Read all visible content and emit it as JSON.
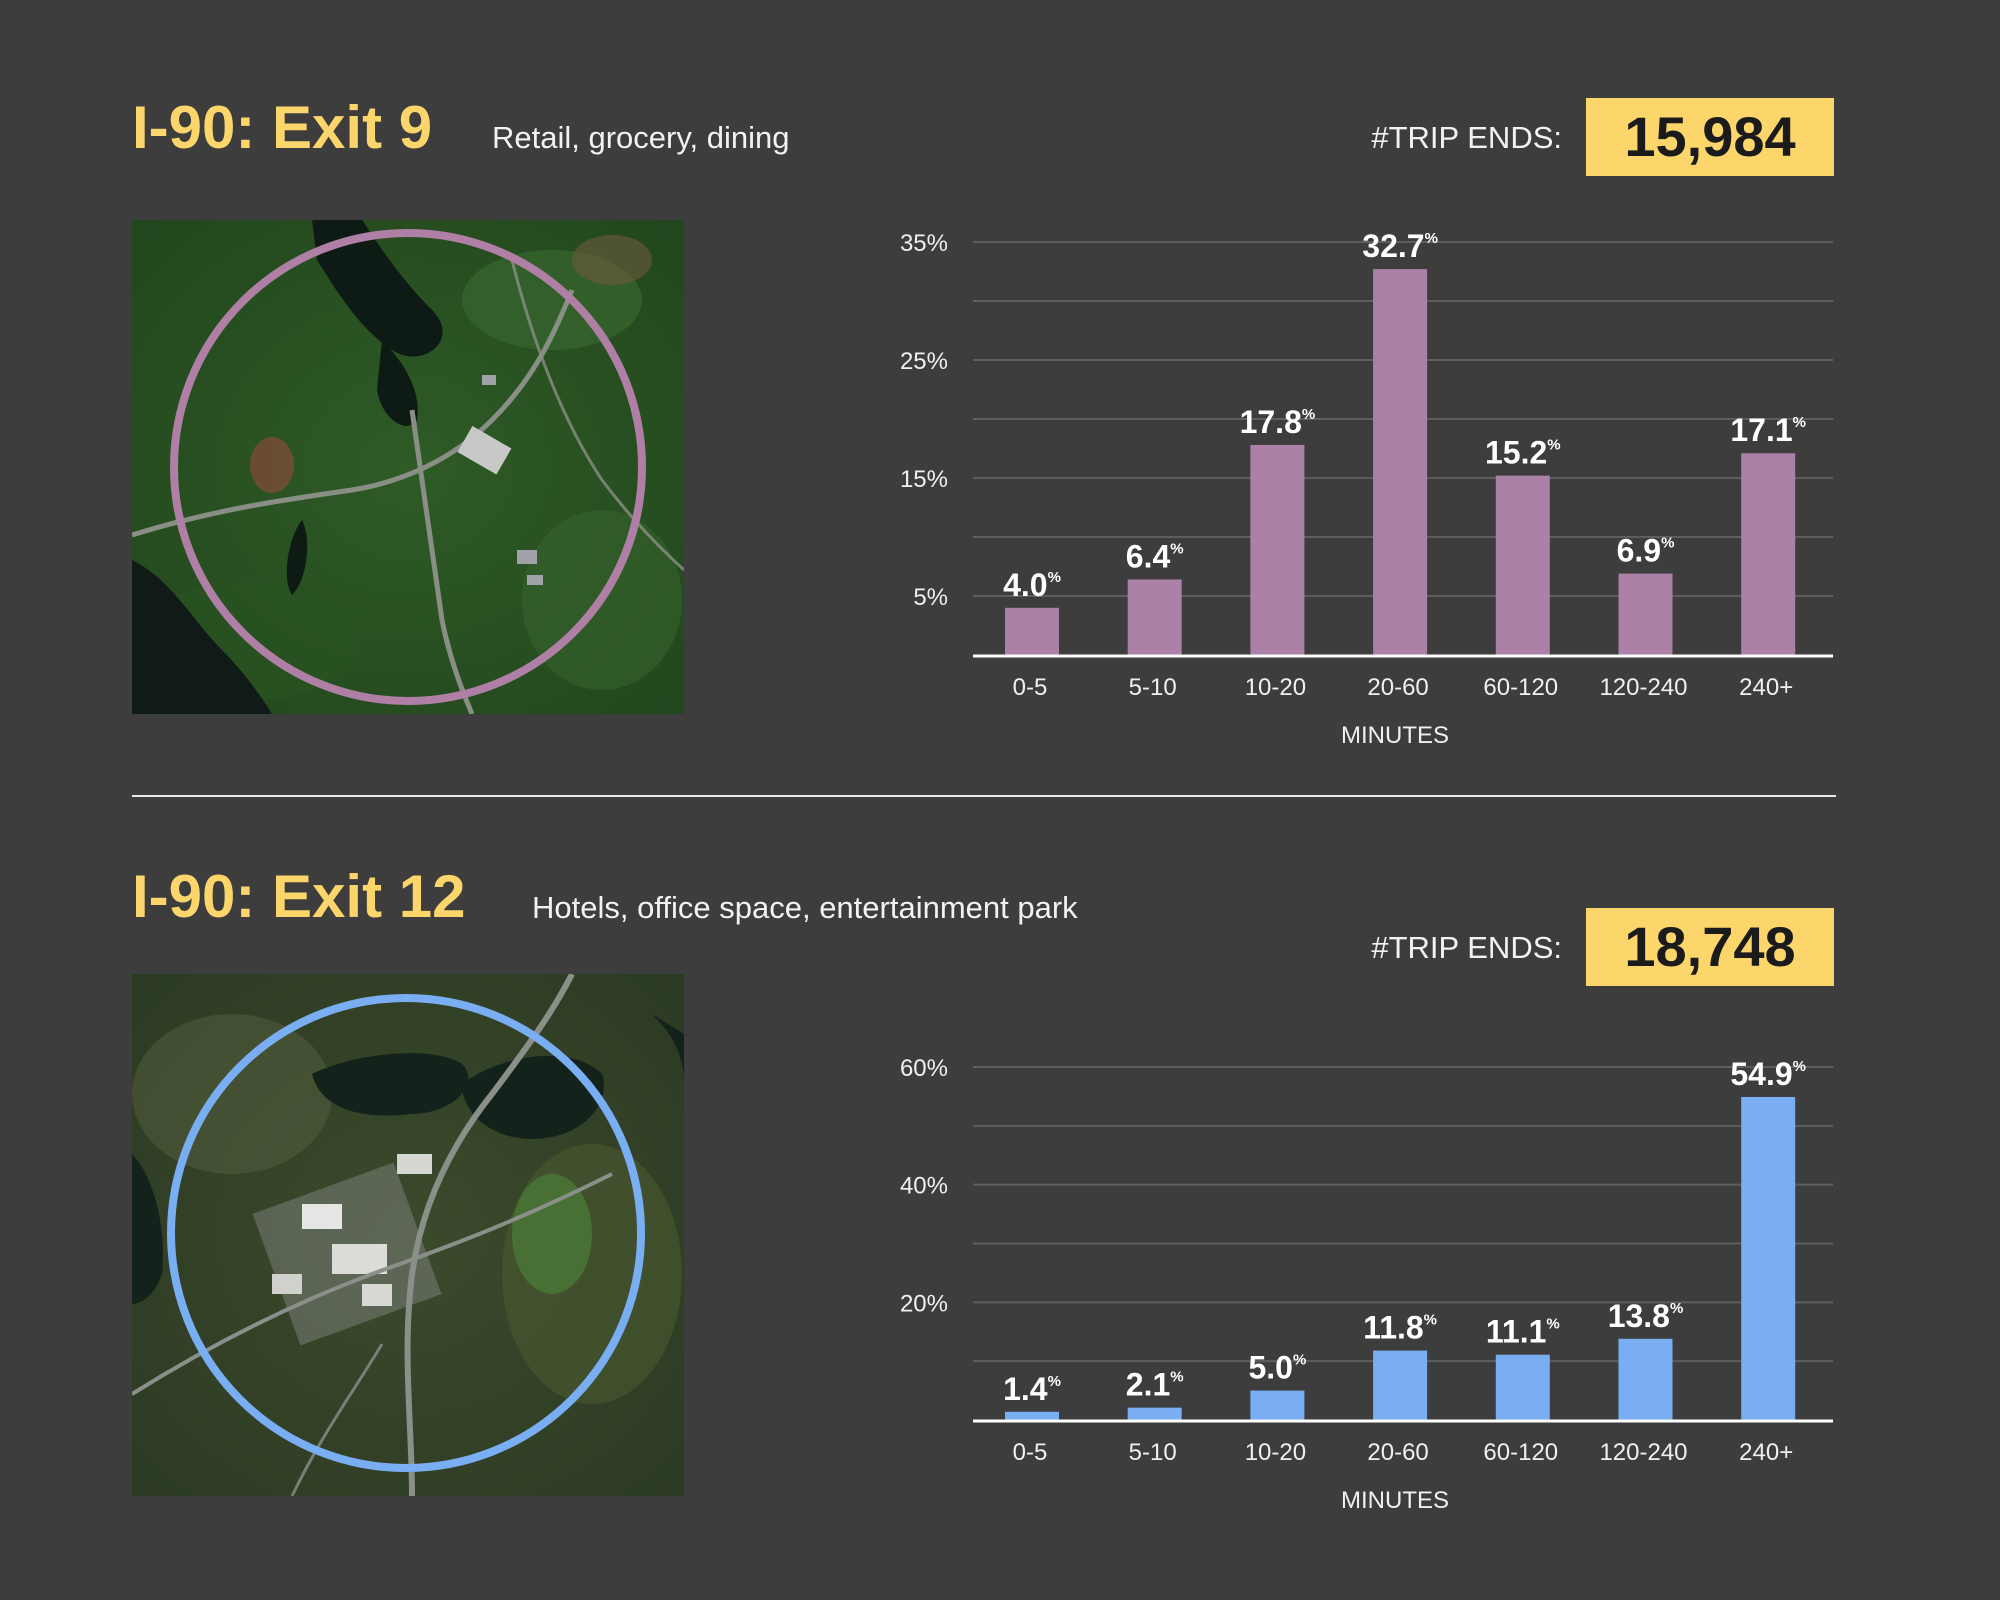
{
  "sections": [
    {
      "title": "I-90: Exit 9",
      "subtitle": "Retail, grocery, dining",
      "trip_label": "#TRIP ENDS:",
      "trip_value": "15,984",
      "map_image": "aerial-map-forest-lake",
      "ring_color": "#b07fa6"
    },
    {
      "title": "I-90: Exit 12",
      "subtitle": "Hotels, office space, entertainment park",
      "trip_label": "#TRIP ENDS:",
      "trip_value": "18,748",
      "map_image": "aerial-map-town-lakes",
      "ring_color": "#7aaef3"
    }
  ],
  "chart_data": [
    {
      "type": "bar",
      "categories": [
        "0-5",
        "5-10",
        "10-20",
        "20-60",
        "60-120",
        "120-240",
        "240+"
      ],
      "values": [
        4.0,
        6.4,
        17.8,
        32.7,
        15.2,
        6.9,
        17.1
      ],
      "value_labels": [
        "4.0",
        "6.4",
        "17.8",
        "32.7",
        "15.2",
        "6.9",
        "17.1"
      ],
      "value_suffix": "%",
      "xlabel": "MINUTES",
      "ylim": [
        0,
        35
      ],
      "y_ticks": [
        {
          "value": 5,
          "label": "5%"
        },
        {
          "value": 15,
          "label": "15%"
        },
        {
          "value": 25,
          "label": "25%"
        },
        {
          "value": 35,
          "label": "35%"
        }
      ],
      "grid_values": [
        5,
        10,
        15,
        20,
        25,
        30,
        35
      ],
      "bar_color": "#ab81a7"
    },
    {
      "type": "bar",
      "categories": [
        "0-5",
        "5-10",
        "10-20",
        "20-60",
        "60-120",
        "120-240",
        "240+"
      ],
      "values": [
        1.4,
        2.1,
        5.0,
        11.8,
        11.1,
        13.8,
        54.9
      ],
      "value_labels": [
        "1.4",
        "2.1",
        "5.0",
        "11.8",
        "11.1",
        "13.8",
        "54.9"
      ],
      "value_suffix": "%",
      "xlabel": "MINUTES",
      "ylim": [
        0,
        60
      ],
      "y_ticks": [
        {
          "value": 20,
          "label": "20%"
        },
        {
          "value": 40,
          "label": "40%"
        },
        {
          "value": 60,
          "label": "60%"
        }
      ],
      "grid_values": [
        10,
        20,
        30,
        40,
        50,
        60
      ],
      "bar_color": "#7aaef3"
    }
  ]
}
